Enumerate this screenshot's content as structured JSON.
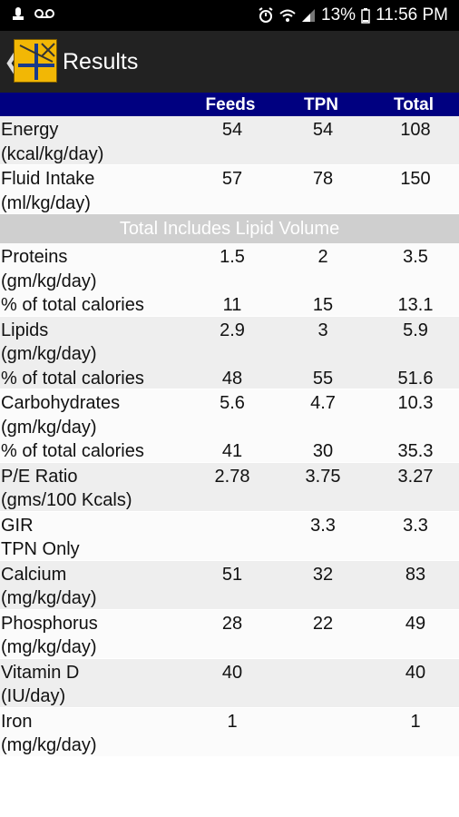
{
  "status_bar": {
    "battery": "13%",
    "time": "11:56 PM"
  },
  "app_bar": {
    "title": "Results"
  },
  "table": {
    "columns": [
      "Feeds",
      "TPN",
      "Total"
    ],
    "rows": [
      {
        "lines": [
          {
            "label": "Energy",
            "feeds": "54",
            "tpn": "54",
            "total": "108"
          },
          {
            "label": "(kcal/kg/day)"
          }
        ]
      },
      {
        "lines": [
          {
            "label": "Fluid Intake",
            "feeds": "57",
            "tpn": "78",
            "total": "150"
          },
          {
            "label": "(ml/kg/day)"
          }
        ]
      },
      {
        "banner": "Total Includes Lipid Volume"
      },
      {
        "lines": [
          {
            "label": "Proteins",
            "feeds": "1.5",
            "tpn": "2",
            "total": "3.5"
          },
          {
            "label": "(gm/kg/day)"
          },
          {
            "label": "% of total calories",
            "feeds": "11",
            "tpn": "15",
            "total": "13.1"
          }
        ]
      },
      {
        "lines": [
          {
            "label": "Lipids",
            "feeds": "2.9",
            "tpn": "3",
            "total": "5.9"
          },
          {
            "label": "(gm/kg/day)"
          },
          {
            "label": "% of total calories",
            "feeds": "48",
            "tpn": "55",
            "total": "51.6"
          }
        ]
      },
      {
        "lines": [
          {
            "label": "Carbohydrates",
            "feeds": "5.6",
            "tpn": "4.7",
            "total": "10.3"
          },
          {
            "label": "(gm/kg/day)"
          },
          {
            "label": "% of total calories",
            "feeds": "41",
            "tpn": "30",
            "total": "35.3"
          }
        ]
      },
      {
        "lines": [
          {
            "label": "P/E Ratio",
            "feeds": "2.78",
            "tpn": "3.75",
            "total": "3.27"
          },
          {
            "label": "(gms/100 Kcals)"
          }
        ]
      },
      {
        "lines": [
          {
            "label": "GIR",
            "feeds": "",
            "tpn": "3.3",
            "total": "3.3"
          },
          {
            "label": "TPN Only"
          }
        ]
      },
      {
        "lines": [
          {
            "label": "Calcium",
            "feeds": "51",
            "tpn": "32",
            "total": "83"
          },
          {
            "label": "(mg/kg/day)"
          }
        ]
      },
      {
        "lines": [
          {
            "label": "Phosphorus",
            "feeds": "28",
            "tpn": "22",
            "total": "49"
          },
          {
            "label": "(mg/kg/day)"
          }
        ]
      },
      {
        "lines": [
          {
            "label": "Vitamin D",
            "feeds": "40",
            "tpn": "",
            "total": "40"
          },
          {
            "label": "(IU/day)"
          }
        ]
      },
      {
        "lines": [
          {
            "label": "Iron",
            "feeds": "1",
            "tpn": "",
            "total": "1"
          },
          {
            "label": "(mg/kg/day)"
          }
        ]
      }
    ]
  },
  "colors": {
    "header_bg": "#000080",
    "app_bar_bg": "#222222",
    "banner_bg": "#cfcfcf",
    "row_alt_bg": "#eeeeee"
  },
  "icons": [
    "voicemail-icon",
    "alarm-icon",
    "wifi-icon",
    "signal-icon",
    "battery-icon",
    "back-arrow-icon",
    "app-logo-icon"
  ]
}
